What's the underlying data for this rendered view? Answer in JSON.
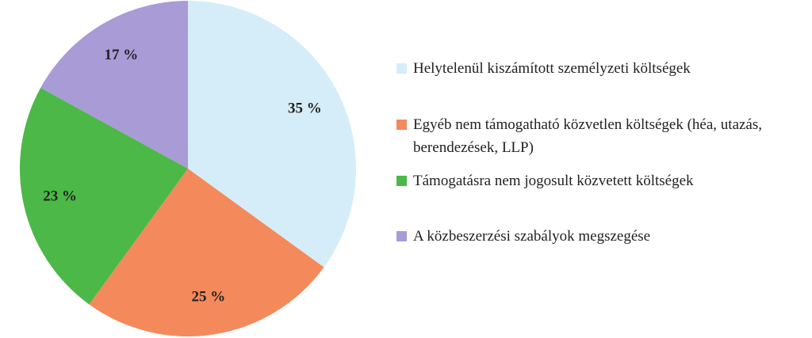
{
  "chart_data": {
    "type": "pie",
    "categories": [
      "Helytelenül kiszámított személyzeti költségek",
      "Egyéb nem támogatható közvetlen költségek (héa, utazás, berendezések, LLP)",
      "Támogatásra nem jogosult közvetett költségek",
      "A közbeszerzési szabályok megszegése"
    ],
    "values": [
      35,
      25,
      23,
      17
    ],
    "value_labels": [
      "35 %",
      "25 %",
      "23 %",
      "17 %"
    ],
    "colors": [
      "#d5edf8",
      "#f4895b",
      "#4cb848",
      "#a99bd5"
    ],
    "legend": "right"
  }
}
